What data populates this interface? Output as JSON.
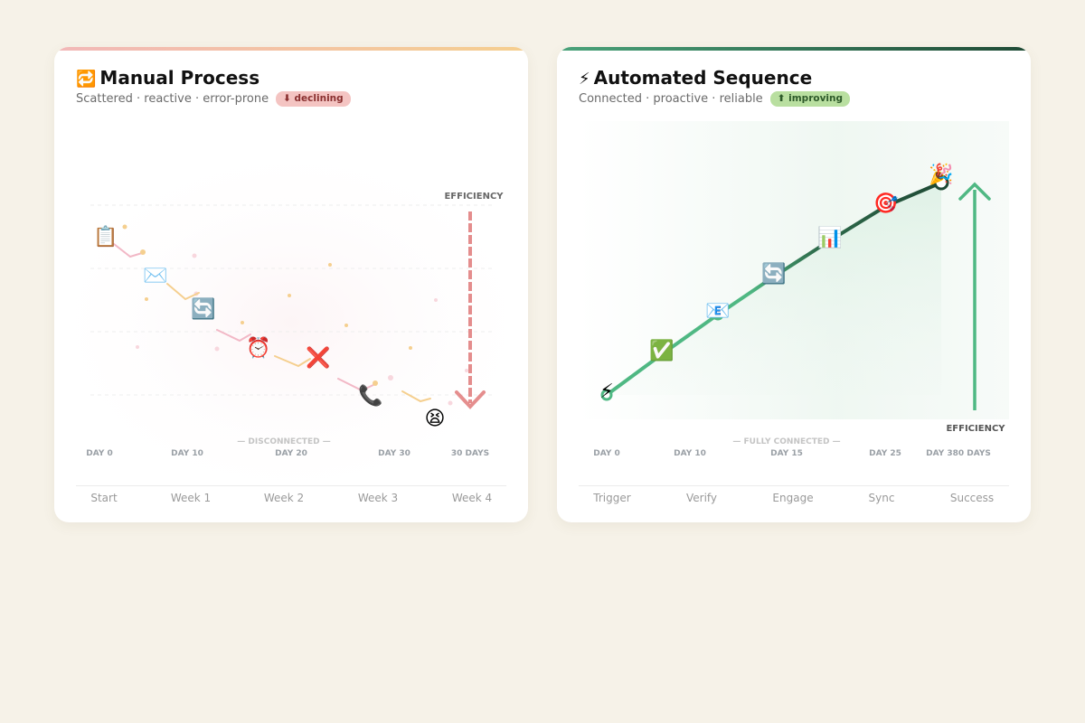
{
  "manual": {
    "title": "Manual Process",
    "title_icon": "🔁",
    "subtitle": "Scattered · reactive · error-prone",
    "badge": "⬇ declining",
    "efficiency_label": "EFFICIENCY",
    "connection_label": "— DISCONNECTED —",
    "day_ticks": [
      "DAY 0",
      "DAY 10",
      "DAY 20",
      "DAY 30",
      "30 DAYS"
    ],
    "stages": [
      "Start",
      "Week 1",
      "Week 2",
      "Week 3",
      "Week 4"
    ],
    "steps": [
      {
        "icon": "📋",
        "name": "clipboard-icon"
      },
      {
        "icon": "✉️",
        "name": "envelope-icon"
      },
      {
        "icon": "🔄",
        "name": "refresh-icon"
      },
      {
        "icon": "⏰",
        "name": "alarm-clock-icon"
      },
      {
        "icon": "❌",
        "name": "cross-icon"
      },
      {
        "icon": "📞",
        "name": "phone-icon"
      },
      {
        "icon": "😫",
        "name": "tired-face-icon"
      }
    ],
    "colors": {
      "trend_pink": "#f2b8c6",
      "trend_orange": "#f5cf8f",
      "arrow": "#e07a7a"
    }
  },
  "automated": {
    "title": "Automated Sequence",
    "title_icon": "⚡",
    "subtitle": "Connected · proactive · reliable",
    "badge": "⬆ improving",
    "efficiency_label": "EFFICIENCY",
    "connection_label": "— FULLY CONNECTED —",
    "day_ticks": [
      "DAY 0",
      "DAY 10",
      "DAY 15",
      "DAY 25",
      "DAY 380 DAYS"
    ],
    "stages": [
      "Trigger",
      "Verify",
      "Engage",
      "Sync",
      "Success"
    ],
    "steps": [
      {
        "icon": "⚡",
        "name": "lightning-icon"
      },
      {
        "icon": "✅",
        "name": "check-icon"
      },
      {
        "icon": "📧",
        "name": "email-icon"
      },
      {
        "icon": "🔄",
        "name": "refresh-icon"
      },
      {
        "icon": "📊",
        "name": "bar-chart-icon"
      },
      {
        "icon": "🎯",
        "name": "target-icon"
      },
      {
        "icon": "🎉",
        "name": "party-popper-icon"
      }
    ],
    "colors": {
      "line_light": "#4fb883",
      "line_dark": "#1f4a35",
      "arrow": "#4fb883"
    }
  }
}
